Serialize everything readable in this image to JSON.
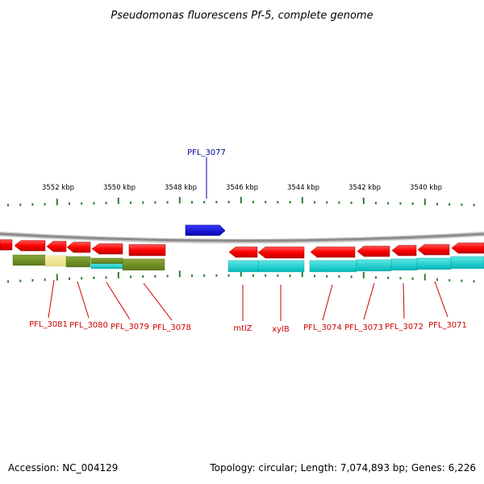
{
  "title": "Pseudomonas fluorescens Pf-5, complete genome",
  "colors": {
    "gene_forward_red": "#ff0000",
    "gene_blue": "#0000ee",
    "label_red": "#cc0000",
    "label_blue": "#000099",
    "cog_olive": "#6b8e23",
    "cog_yellow": "#f0e68c",
    "cog_cyan": "#00cccc",
    "tick_green": "#2e7d32",
    "backbone_grey": "#8c8c8c"
  },
  "ticks": [
    {
      "label": "3552 kbp"
    },
    {
      "label": "3550 kbp"
    },
    {
      "label": "3548 kbp"
    },
    {
      "label": "3546 kbp"
    },
    {
      "label": "3544 kbp"
    },
    {
      "label": "3542 kbp"
    },
    {
      "label": "3540 kbp"
    }
  ],
  "genes_outer": [
    {
      "label": "PFL_3077",
      "strand": "forward",
      "color": "blue"
    }
  ],
  "genes_inner_labeled": [
    {
      "label": "PFL_3081"
    },
    {
      "label": "PFL_3080"
    },
    {
      "label": "PFL_3079"
    },
    {
      "label": "PFL_3078"
    },
    {
      "label": "mtlZ"
    },
    {
      "label": "xylB"
    },
    {
      "label": "PFL_3074"
    },
    {
      "label": "PFL_3073"
    },
    {
      "label": "PFL_3072"
    },
    {
      "label": "PFL_3071"
    }
  ],
  "footer": {
    "accession": "Accession: NC_004129",
    "summary": "Topology: circular; Length: 7,074,893 bp; Genes: 6,226"
  }
}
